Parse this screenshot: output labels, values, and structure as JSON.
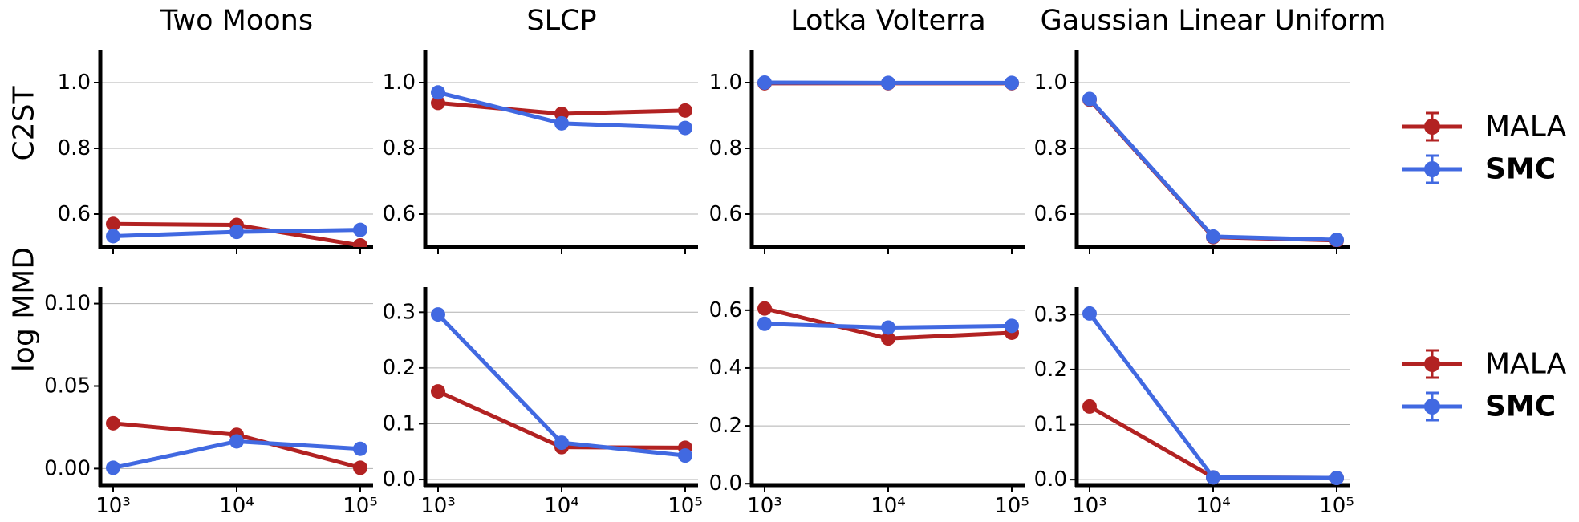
{
  "figure": {
    "row_labels": [
      "C2ST",
      "log MMD"
    ],
    "colors": {
      "MALA": "#b22222",
      "SMC": "#4169e1",
      "axis": "#000000",
      "grid": "#b0b0b0"
    },
    "legend": [
      {
        "label": "MALA",
        "bold": false
      },
      {
        "label": "SMC",
        "bold": true
      }
    ]
  },
  "chart_data": [
    {
      "type": "line",
      "row": 0,
      "col": 0,
      "title": "Two Moons",
      "ylabel": "C2ST",
      "xlabel": "",
      "x": [
        1000,
        10000,
        100000
      ],
      "xtick_labels": [],
      "xscale": "log",
      "ylim": [
        0.5,
        1.1
      ],
      "yticks": [
        0.6,
        0.8,
        1.0
      ],
      "ytick_labels": [
        "0.6",
        "0.8",
        "1.0"
      ],
      "series": [
        {
          "name": "MALA",
          "values": [
            0.57,
            0.567,
            0.505
          ]
        },
        {
          "name": "SMC",
          "values": [
            0.533,
            0.546,
            0.552
          ]
        }
      ]
    },
    {
      "type": "line",
      "row": 0,
      "col": 1,
      "title": "SLCP",
      "ylabel": "",
      "xlabel": "",
      "x": [
        1000,
        10000,
        100000
      ],
      "xtick_labels": [],
      "xscale": "log",
      "ylim": [
        0.5,
        1.1
      ],
      "yticks": [
        0.6,
        0.8,
        1.0
      ],
      "ytick_labels": [
        "0.6",
        "0.8",
        "1.0"
      ],
      "series": [
        {
          "name": "MALA",
          "values": [
            0.938,
            0.905,
            0.915
          ]
        },
        {
          "name": "SMC",
          "values": [
            0.97,
            0.876,
            0.862
          ]
        }
      ]
    },
    {
      "type": "line",
      "row": 0,
      "col": 2,
      "title": "Lotka Volterra",
      "ylabel": "",
      "xlabel": "",
      "x": [
        1000,
        10000,
        100000
      ],
      "xtick_labels": [],
      "xscale": "log",
      "ylim": [
        0.5,
        1.1
      ],
      "yticks": [
        0.6,
        0.8,
        1.0
      ],
      "ytick_labels": [
        "0.6",
        "0.8",
        "1.0"
      ],
      "series": [
        {
          "name": "MALA",
          "values": [
            0.998,
            0.998,
            0.998
          ]
        },
        {
          "name": "SMC",
          "values": [
            1.0,
            0.999,
            0.999
          ]
        }
      ]
    },
    {
      "type": "line",
      "row": 0,
      "col": 3,
      "title": "Gaussian Linear Uniform",
      "ylabel": "",
      "xlabel": "",
      "x": [
        1000,
        10000,
        100000
      ],
      "xtick_labels": [],
      "xscale": "log",
      "ylim": [
        0.5,
        1.1
      ],
      "yticks": [
        0.6,
        0.8,
        1.0
      ],
      "ytick_labels": [
        "0.6",
        "0.8",
        "1.0"
      ],
      "series": [
        {
          "name": "MALA",
          "values": [
            0.948,
            0.53,
            0.52
          ]
        },
        {
          "name": "SMC",
          "values": [
            0.95,
            0.532,
            0.522
          ]
        }
      ]
    },
    {
      "type": "line",
      "row": 1,
      "col": 0,
      "title": "",
      "ylabel": "log MMD",
      "xlabel": "",
      "x": [
        1000,
        10000,
        100000
      ],
      "xtick_labels": [
        "10³",
        "10⁴",
        "10⁵"
      ],
      "xscale": "log",
      "ylim": [
        -0.01,
        0.11
      ],
      "yticks": [
        0.0,
        0.05,
        0.1
      ],
      "ytick_labels": [
        "0.00",
        "0.05",
        "0.10"
      ],
      "series": [
        {
          "name": "MALA",
          "values": [
            0.0275,
            0.0205,
            0.0005
          ]
        },
        {
          "name": "SMC",
          "values": [
            0.0005,
            0.0165,
            0.012
          ]
        }
      ]
    },
    {
      "type": "line",
      "row": 1,
      "col": 1,
      "title": "",
      "ylabel": "",
      "xlabel": "",
      "x": [
        1000,
        10000,
        100000
      ],
      "xtick_labels": [
        "10³",
        "10⁴",
        "10⁵"
      ],
      "xscale": "log",
      "ylim": [
        -0.01,
        0.345
      ],
      "yticks": [
        0.0,
        0.1,
        0.2,
        0.3
      ],
      "ytick_labels": [
        "0.0",
        "0.1",
        "0.2",
        "0.3"
      ],
      "series": [
        {
          "name": "MALA",
          "values": [
            0.158,
            0.058,
            0.057
          ]
        },
        {
          "name": "SMC",
          "values": [
            0.296,
            0.066,
            0.043
          ]
        }
      ]
    },
    {
      "type": "line",
      "row": 1,
      "col": 2,
      "title": "",
      "ylabel": "",
      "xlabel": "",
      "x": [
        1000,
        10000,
        100000
      ],
      "xtick_labels": [
        "10³",
        "10⁴",
        "10⁵"
      ],
      "xscale": "log",
      "ylim": [
        -0.005,
        0.68
      ],
      "yticks": [
        0.0,
        0.2,
        0.4,
        0.6
      ],
      "ytick_labels": [
        "0.0",
        "0.2",
        "0.4",
        "0.6"
      ],
      "series": [
        {
          "name": "MALA",
          "values": [
            0.606,
            0.502,
            0.522
          ]
        },
        {
          "name": "SMC",
          "values": [
            0.553,
            0.54,
            0.546
          ]
        }
      ]
    },
    {
      "type": "line",
      "row": 1,
      "col": 3,
      "title": "",
      "ylabel": "",
      "xlabel": "",
      "x": [
        1000,
        10000,
        100000
      ],
      "xtick_labels": [
        "10³",
        "10⁴",
        "10⁵"
      ],
      "xscale": "log",
      "ylim": [
        -0.01,
        0.35
      ],
      "yticks": [
        0.0,
        0.1,
        0.2,
        0.3
      ],
      "ytick_labels": [
        "0.0",
        "0.1",
        "0.2",
        "0.3"
      ],
      "series": [
        {
          "name": "MALA",
          "values": [
            0.133,
            0.004,
            0.003
          ]
        },
        {
          "name": "SMC",
          "values": [
            0.302,
            0.004,
            0.003
          ]
        }
      ]
    }
  ]
}
